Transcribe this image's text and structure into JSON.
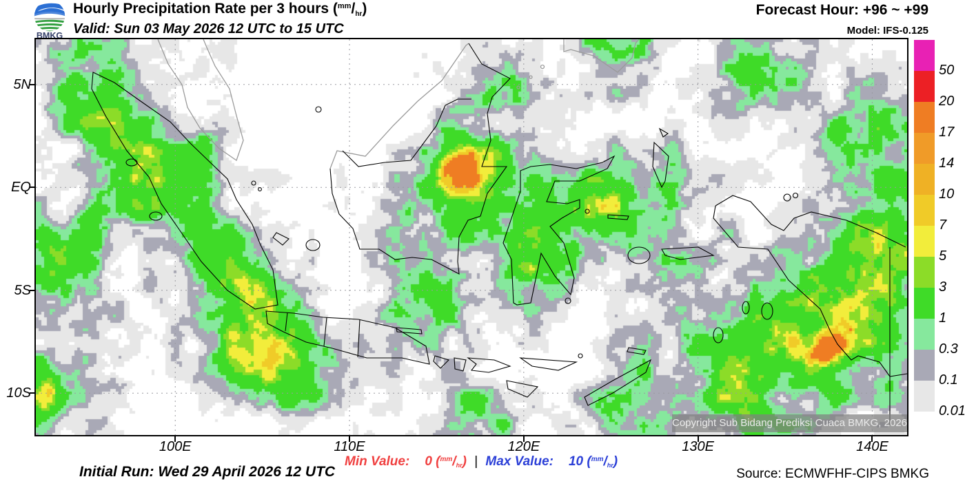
{
  "header": {
    "logo_text": "BMKG",
    "title_prefix": "Hourly Precipitation Rate per 3 hours (",
    "title_suffix": ")",
    "valid_line": "Valid: Sun 03 May 2026 12 UTC to 15 UTC",
    "forecast_hour": "Forecast Hour: +96 ~ +99",
    "model": "Model: IFS-0.125"
  },
  "unit": {
    "open": "(",
    "numerator": "mm",
    "slash": "/",
    "denominator": "hr",
    "close": ")"
  },
  "map": {
    "x_ticks": [
      {
        "label": "100E",
        "lon": 100
      },
      {
        "label": "110E",
        "lon": 110
      },
      {
        "label": "120E",
        "lon": 120
      },
      {
        "label": "130E",
        "lon": 130
      },
      {
        "label": "140E",
        "lon": 140
      }
    ],
    "y_ticks": [
      {
        "label": "5N",
        "lat": 5
      },
      {
        "label": "EQ",
        "lat": 0
      },
      {
        "label": "5S",
        "lat": -5
      },
      {
        "label": "10S",
        "lat": -10
      }
    ],
    "copyright": "Copyright Sub Bidang Prediksi Cuaca BMKG, 2026"
  },
  "colorbar": {
    "entries": [
      {
        "label": "50",
        "color": "#E821B4"
      },
      {
        "label": "20",
        "color": "#EC2025"
      },
      {
        "label": "17",
        "color": "#EF7D23"
      },
      {
        "label": "14",
        "color": "#F09B28"
      },
      {
        "label": "10",
        "color": "#EFB125"
      },
      {
        "label": "7",
        "color": "#F0CB28"
      },
      {
        "label": "5",
        "color": "#F2ED3B"
      },
      {
        "label": "3",
        "color": "#8CDC28"
      },
      {
        "label": "1",
        "color": "#3FDB28"
      },
      {
        "label": "0.3",
        "color": "#86E89D"
      },
      {
        "label": "0.1",
        "color": "#A9A9B6"
      },
      {
        "label": "0.01",
        "color": "#E7E7E7"
      }
    ]
  },
  "footer": {
    "initial_run": "Initial Run: Wed 29 April 2026 12 UTC",
    "min_label": "Min Value:",
    "min_value": "0",
    "separator": "|",
    "max_label": "Max Value:",
    "max_value": "10",
    "min_color": "#F04040",
    "max_color": "#2B3FD7",
    "source": "Source: ECMWFHF-CIPS BMKG"
  }
}
